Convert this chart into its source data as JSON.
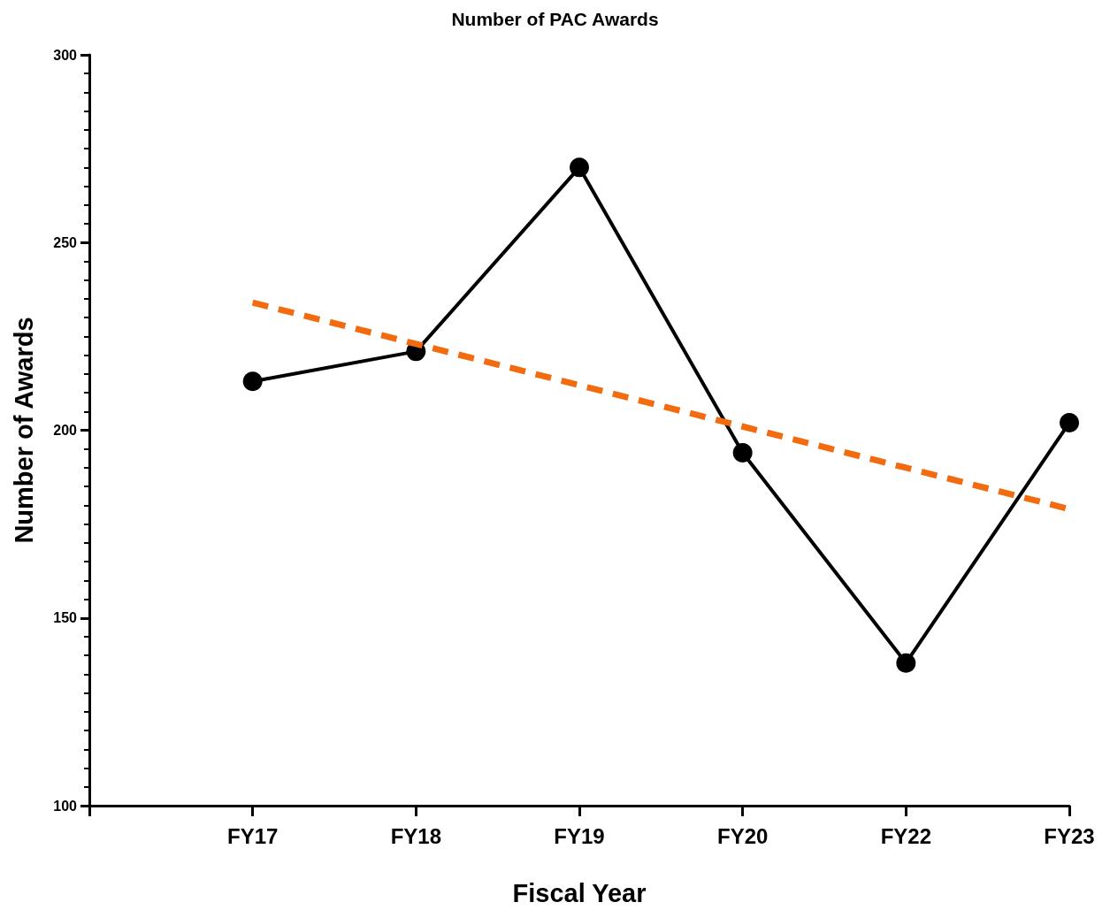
{
  "chart_data": {
    "type": "line",
    "title": "Number of PAC Awards",
    "xlabel": "Fiscal Year",
    "ylabel": "Number of Awards",
    "categories": [
      null,
      "FY17",
      "FY18",
      "FY19",
      "FY20",
      "FY22",
      "FY23"
    ],
    "series": [
      {
        "color": "#000000",
        "values": [
          null,
          213,
          221,
          270,
          194,
          138,
          202
        ],
        "marker": "circle",
        "line_style": "solid"
      },
      {
        "color": "#f26b0f",
        "values": [
          null,
          234,
          223,
          212,
          201,
          190,
          179
        ],
        "marker": "none",
        "line_style": "dashed"
      }
    ],
    "ylim": [
      100,
      300
    ],
    "yticks": [
      100,
      150,
      200,
      250,
      300
    ],
    "grid": false
  }
}
